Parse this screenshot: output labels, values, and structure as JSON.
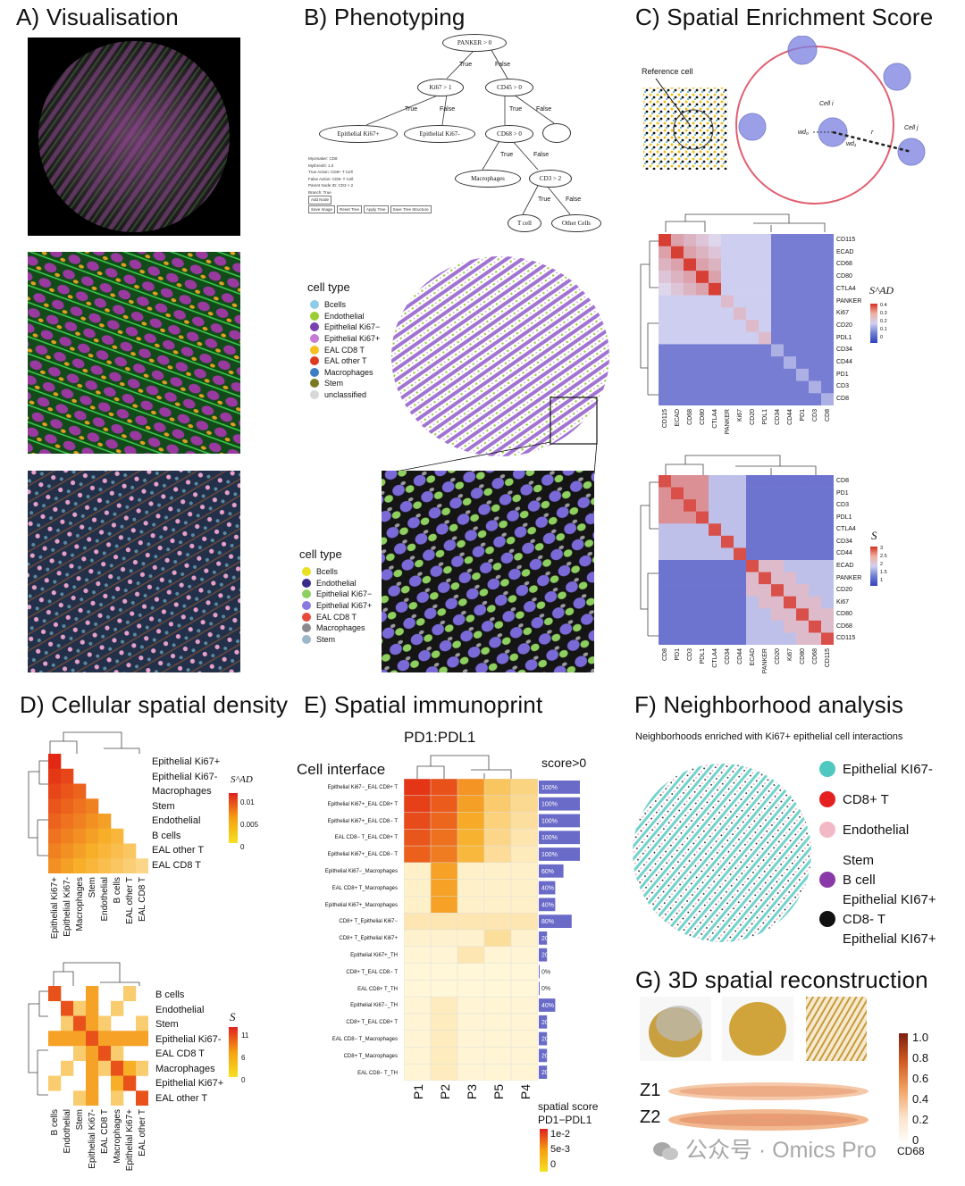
{
  "panels": {
    "a": "A) Visualisation",
    "b": "B) Phenotyping",
    "c": "C) Spatial Enrichment Score",
    "d": "D) Cellular spatial density",
    "e": "E) Spatial immunoprint",
    "f": "F) Neighborhood analysis",
    "g": "G) 3D spatial reconstruction"
  },
  "b": {
    "nodes": [
      "PANKER > 0",
      "Ki67 > 1",
      "CD45 > 0",
      "Epithelial Ki67+",
      "Epithelial Ki67-",
      "CD68 > 0",
      "Macrophages",
      "CD3 > 2",
      "T cell",
      "Other Cells"
    ],
    "edges": [
      "True",
      "False",
      "True",
      "False",
      "True",
      "False",
      "True",
      "False",
      "True",
      "False"
    ],
    "form": [
      "Myomaker: CD8",
      "Mythreshl: 1.0",
      "True Action: CD8+ T Cell",
      "False Action: CD8- T Cell",
      "Parent Node ID: CD3 > 2",
      "Branch: True",
      "Add Node"
    ],
    "buttons": [
      "Save Image",
      "Reset Tree",
      "Apply Tree",
      "Save Tree Structure"
    ],
    "legend1_title": "cell type",
    "legend1": [
      {
        "label": "Bcells",
        "color": "#8ecbe8"
      },
      {
        "label": "Endothelial",
        "color": "#9acd32"
      },
      {
        "label": "Epithelial Ki67−",
        "color": "#7a3fb0"
      },
      {
        "label": "Epithelial Ki67+",
        "color": "#c77bd6"
      },
      {
        "label": "EAL CD8 T",
        "color": "#f6c020"
      },
      {
        "label": "EAL other T",
        "color": "#e03a1e"
      },
      {
        "label": "Macrophages",
        "color": "#3b7fc4"
      },
      {
        "label": "Stem",
        "color": "#7a7a20"
      },
      {
        "label": "unclassified",
        "color": "#d8d8d8"
      }
    ],
    "legend2_title": "cell type",
    "legend2": [
      {
        "label": "Bcells",
        "color": "#e8e020"
      },
      {
        "label": "Endothelial",
        "color": "#3a2a8c"
      },
      {
        "label": "Epithelial Ki67−",
        "color": "#8ed060"
      },
      {
        "label": "Epithelial Ki67+",
        "color": "#8a7ae0"
      },
      {
        "label": "EAL CD8 T",
        "color": "#e84a3a"
      },
      {
        "label": "Macrophages",
        "color": "#8a8a90"
      },
      {
        "label": "Stem",
        "color": "#9ab8c8"
      }
    ]
  },
  "c": {
    "reference_cell": "Reference cell",
    "cell_i": "Cell i",
    "cell_j": "Cell j",
    "r": "r",
    "w0": "wd₀",
    "w1": "wd₁",
    "hm1_rows": [
      "CD115",
      "ECAD",
      "CD68",
      "CD80",
      "CTLA4",
      "PANKER",
      "Ki67",
      "CD20",
      "PDL1",
      "CD34",
      "CD44",
      "PD1",
      "CD3",
      "CD8"
    ],
    "hm1_cols": [
      "CD115",
      "ECAD",
      "CD68",
      "CD80",
      "CTLA4",
      "PANKER",
      "Ki67",
      "CD20",
      "PDL1",
      "CD34",
      "CD44",
      "PD1",
      "CD3",
      "CD8"
    ],
    "hm1_legend_title": "S^AD",
    "hm1_ticks": [
      "0.4",
      "0.3",
      "0.2",
      "0.1",
      "0"
    ],
    "hm2_rows": [
      "CD8",
      "PD1",
      "CD3",
      "PDL1",
      "CTLA4",
      "CD34",
      "CD44",
      "ECAD",
      "PANKER",
      "CD20",
      "Ki67",
      "CD80",
      "CD68",
      "CD115"
    ],
    "hm2_cols": [
      "CD8",
      "PD1",
      "CD3",
      "PDL1",
      "CTLA4",
      "CD34",
      "CD44",
      "ECAD",
      "PANKER",
      "CD20",
      "Ki67",
      "CD80",
      "CD68",
      "CD115"
    ],
    "hm2_legend_title": "S",
    "hm2_ticks": [
      "3",
      "2.5",
      "2",
      "1.5",
      "1"
    ]
  },
  "d": {
    "hm1_rows": [
      "Epithelial Ki67+",
      "Epithelial Ki67-",
      "Macrophages",
      "Stem",
      "Endothelial",
      "B cells",
      "EAL other T",
      "EAL CD8 T"
    ],
    "hm1_cols": [
      "Epithelial Ki67+",
      "Epithelial Ki67-",
      "Macrophages",
      "Stem",
      "Endothelial",
      "B cells",
      "EAL other T",
      "EAL CD8 T"
    ],
    "hm1_legend_title": "S^AD",
    "hm1_ticks": [
      "0.01",
      "0.005",
      "0"
    ],
    "hm2_rows": [
      "B cells",
      "Endothelial",
      "Stem",
      "Epithelial Ki67-",
      "EAL CD8 T",
      "Macrophages",
      "Epithelial Ki67+",
      "EAL other T"
    ],
    "hm2_cols": [
      "B cells",
      "Endothelial",
      "Stem",
      "Epithelial Ki67-",
      "EAL CD8 T",
      "Macrophages",
      "Epithelial Ki67+",
      "EAL other T"
    ],
    "hm2_legend_title": "S",
    "hm2_ticks": [
      "11",
      "6",
      "0"
    ]
  },
  "e": {
    "title": "PD1:PDL1",
    "cell_interface": "Cell interface",
    "score_header": "score>0",
    "rows": [
      {
        "label": "Epithelial Ki67−_EAL CD8+ T",
        "pct": "100%",
        "v": 1.0
      },
      {
        "label": "Epithelial Ki67+_EAL CD8+ T",
        "pct": "100%",
        "v": 1.0
      },
      {
        "label": "Epithelial Ki67+_EAL CD8− T",
        "pct": "100%",
        "v": 1.0
      },
      {
        "label": "EAL CD8− T_EAL CD8+ T",
        "pct": "100%",
        "v": 1.0
      },
      {
        "label": "Epithelial Ki67+_EAL CD8− T",
        "pct": "100%",
        "v": 1.0
      },
      {
        "label": "Epithelial Ki67−_Macrophages",
        "pct": "60%",
        "v": 0.6
      },
      {
        "label": "EAL CD8+ T_Macrophages",
        "pct": "40%",
        "v": 0.4
      },
      {
        "label": "Epithelial Ki67+_Macrophages",
        "pct": "40%",
        "v": 0.4
      },
      {
        "label": "CD8+ T_Epithelial Ki67−",
        "pct": "80%",
        "v": 0.8
      },
      {
        "label": "CD8+ T_Epithelial Ki67+",
        "pct": "20%",
        "v": 0.2
      },
      {
        "label": "Epithelial Ki67+_TH",
        "pct": "20%",
        "v": 0.2
      },
      {
        "label": "CD8+ T_EAL CD8− T",
        "pct": "0%",
        "v": 0
      },
      {
        "label": "EAL CD8+ T_TH",
        "pct": "0%",
        "v": 0
      },
      {
        "label": "Epithelial Ki67−_TH",
        "pct": "40%",
        "v": 0.4
      },
      {
        "label": "CD8+ T_EAL CD8+ T",
        "pct": "20%",
        "v": 0.2
      },
      {
        "label": "EAL CD8− T_Macrophages",
        "pct": "20%",
        "v": 0.2
      },
      {
        "label": "CD8+ T_Macrophages",
        "pct": "20%",
        "v": 0.2
      },
      {
        "label": "EAL CD8− T_TH",
        "pct": "20%",
        "v": 0.2
      }
    ],
    "cols": [
      "P1",
      "P2",
      "P3",
      "P5",
      "P4"
    ],
    "legend_title1": "spatial score",
    "legend_title2": "PD1−PDL1",
    "legend_ticks": [
      "1e-2",
      "5e-3",
      "0"
    ]
  },
  "f": {
    "subtitle": "Neighborhoods enriched with Ki67+ epithelial cell interactions",
    "legend": [
      {
        "label": "Epithelial KI67-",
        "color": "#4fc8c0"
      },
      {
        "label": "CD8+ T",
        "color": "#e52020"
      },
      {
        "label": "Endothelial",
        "color": "#f2b8c6"
      },
      {
        "label": "Stem",
        "color": ""
      },
      {
        "label": "B cell",
        "color": "#8a3aa8"
      },
      {
        "label": "Epithelial KI67+",
        "color": ""
      },
      {
        "label": "CD8- T",
        "color": "#111111"
      },
      {
        "label": "Epithelial KI67+",
        "color": ""
      }
    ]
  },
  "g": {
    "z1": "Z1",
    "z2": "Z2",
    "ticks": [
      "1.0",
      "0.8",
      "0.6",
      "0.4",
      "0.2",
      "0"
    ],
    "cbar_label": "CD68",
    "watermark": "公众号 · Omics Pro"
  }
}
